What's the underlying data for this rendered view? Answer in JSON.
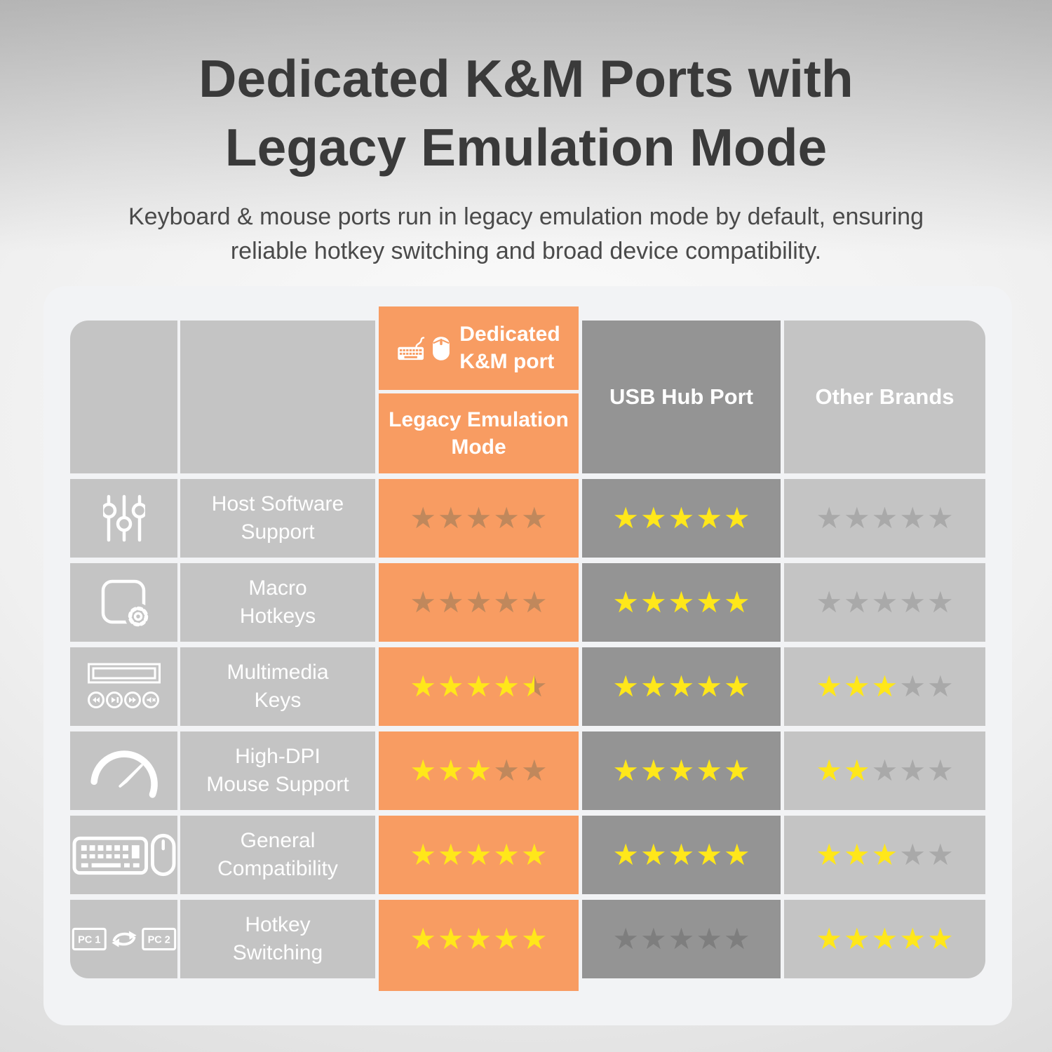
{
  "header": {
    "title_line1": "Dedicated K&M Ports with",
    "title_line2": "Legacy Emulation Mode",
    "subtitle_line1": "Keyboard & mouse ports run in legacy emulation mode by default, ensuring",
    "subtitle_line2": "reliable hotkey switching and broad device compatibility."
  },
  "table": {
    "max_stars": 5,
    "columns": {
      "km": {
        "title_line1": "Dedicated",
        "title_line2": "K&M port",
        "subtitle_line1": "Legacy Emulation",
        "subtitle_line2": "Mode",
        "icons": [
          "keyboard-icon",
          "mouse-icon"
        ]
      },
      "usb": {
        "label": "USB Hub Port"
      },
      "other": {
        "label": "Other Brands"
      }
    },
    "rows": [
      {
        "icon": "sliders-icon",
        "label_line1": "Host Software",
        "label_line2": "Support",
        "ratings": {
          "km": {
            "value": 0,
            "empty": "star_dim_on_orange"
          },
          "usb": {
            "value": 5,
            "empty": "star_dim_on_dark"
          },
          "other": {
            "value": 0,
            "empty": "star_dim_on_light"
          }
        }
      },
      {
        "icon": "macro-app-icon",
        "label_line1": "Macro",
        "label_line2": "Hotkeys",
        "ratings": {
          "km": {
            "value": 0,
            "empty": "star_dim_on_orange"
          },
          "usb": {
            "value": 5,
            "empty": "star_dim_on_dark"
          },
          "other": {
            "value": 0,
            "empty": "star_dim_on_light"
          }
        }
      },
      {
        "icon": "multimedia-keys-icon",
        "label_line1": "Multimedia",
        "label_line2": "Keys",
        "ratings": {
          "km": {
            "value": 4.5,
            "empty": "star_dim_on_orange"
          },
          "usb": {
            "value": 5,
            "empty": "star_dim_on_dark"
          },
          "other": {
            "value": 3,
            "empty": "star_dim_on_light"
          }
        }
      },
      {
        "icon": "speedometer-icon",
        "label_line1": "High-DPI",
        "label_line2": "Mouse Support",
        "ratings": {
          "km": {
            "value": 3,
            "empty": "star_dim_on_orange"
          },
          "usb": {
            "value": 5,
            "empty": "star_dim_on_dark"
          },
          "other": {
            "value": 2,
            "empty": "star_dim_on_light"
          }
        }
      },
      {
        "icon": "keyboard-mouse-icon",
        "label_line1": "General",
        "label_line2": "Compatibility",
        "ratings": {
          "km": {
            "value": 5,
            "empty": "star_dim_on_orange"
          },
          "usb": {
            "value": 5,
            "empty": "star_dim_on_dark"
          },
          "other": {
            "value": 3,
            "empty": "star_dim_on_light"
          }
        }
      },
      {
        "icon": "pc-switch-icon",
        "label_line1": "Hotkey",
        "label_line2": "Switching",
        "pc_labels": [
          "PC 1",
          "PC 2"
        ],
        "ratings": {
          "km": {
            "value": 5,
            "empty": "star_dim_on_orange"
          },
          "usb": {
            "value": 0,
            "empty": "star_dim_on_dark"
          },
          "other": {
            "value": 5,
            "empty": "star_dim_on_light"
          }
        }
      }
    ]
  },
  "colors": {
    "accent_orange": "#f89c62",
    "column_dark_gray": "#949494",
    "column_light_gray": "#c4c4c4",
    "star_filled": "#ffe71a",
    "star_dim_on_orange": "#c0885c",
    "star_dim_on_dark": "#7e7e7e",
    "star_dim_on_light": "#a9a9a9"
  },
  "chart_data": {
    "type": "table",
    "title": "Dedicated K&M Ports with Legacy Emulation Mode",
    "subtitle": "Keyboard & mouse ports run in legacy emulation mode by default, ensuring reliable hotkey switching and broad device compatibility.",
    "columns": [
      "Dedicated K&M port (Legacy Emulation Mode)",
      "USB Hub Port",
      "Other Brands"
    ],
    "rows": [
      "Host Software Support",
      "Macro Hotkeys",
      "Multimedia Keys",
      "High-DPI Mouse Support",
      "General Compatibility",
      "Hotkey Switching"
    ],
    "values_out_of_5": [
      [
        0,
        5,
        0
      ],
      [
        0,
        5,
        0
      ],
      [
        4.5,
        5,
        3
      ],
      [
        3,
        5,
        2
      ],
      [
        5,
        5,
        3
      ],
      [
        5,
        0,
        5
      ]
    ]
  }
}
